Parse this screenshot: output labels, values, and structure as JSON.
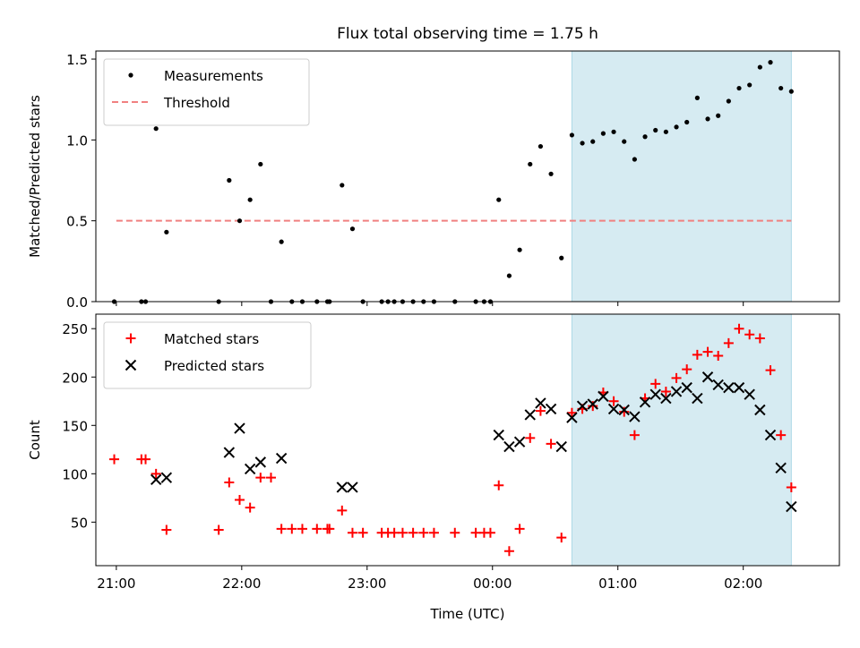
{
  "title": "Flux total observing time = 1.75 h",
  "chart_data": [
    {
      "type": "scatter",
      "panel": "top",
      "ylabel": "Matched/Predicted stars",
      "xlabel": "",
      "ylim": [
        0,
        1.55
      ],
      "yticks": [
        0.0,
        0.5,
        1.0,
        1.5
      ],
      "yticklabels": [
        "0.0",
        "0.5",
        "1.0",
        "1.5"
      ],
      "shaded_span": [
        "00:38",
        "02:23"
      ],
      "legend": {
        "placement": "top-left",
        "entries": [
          "Measurements",
          "Threshold"
        ]
      },
      "threshold": {
        "name": "Threshold",
        "y": 0.5,
        "x_range": [
          "21:00",
          "02:23"
        ],
        "color": "#f08080",
        "style": "dashed"
      },
      "series": [
        {
          "name": "Measurements",
          "color": "#000000",
          "marker": "dot",
          "points": [
            [
              "20:59",
              0.0
            ],
            [
              "21:12",
              0.0
            ],
            [
              "21:14",
              0.0
            ],
            [
              "21:19",
              1.07
            ],
            [
              "21:24",
              0.43
            ],
            [
              "21:49",
              0.0
            ],
            [
              "21:54",
              0.75
            ],
            [
              "21:59",
              0.5
            ],
            [
              "22:04",
              0.63
            ],
            [
              "22:09",
              0.85
            ],
            [
              "22:14",
              0.0
            ],
            [
              "22:19",
              0.37
            ],
            [
              "22:24",
              0.0
            ],
            [
              "22:29",
              0.0
            ],
            [
              "22:36",
              0.0
            ],
            [
              "22:41",
              0.0
            ],
            [
              "22:42",
              0.0
            ],
            [
              "22:48",
              0.72
            ],
            [
              "22:53",
              0.45
            ],
            [
              "22:58",
              0.0
            ],
            [
              "23:07",
              0.0
            ],
            [
              "23:10",
              0.0
            ],
            [
              "23:13",
              0.0
            ],
            [
              "23:17",
              0.0
            ],
            [
              "23:22",
              0.0
            ],
            [
              "23:27",
              0.0
            ],
            [
              "23:32",
              0.0
            ],
            [
              "23:42",
              0.0
            ],
            [
              "23:52",
              0.0
            ],
            [
              "23:56",
              0.0
            ],
            [
              "23:59",
              0.0
            ],
            [
              "00:03",
              0.63
            ],
            [
              "00:08",
              0.16
            ],
            [
              "00:13",
              0.32
            ],
            [
              "00:18",
              0.85
            ],
            [
              "00:23",
              0.96
            ],
            [
              "00:28",
              0.79
            ],
            [
              "00:33",
              0.27
            ],
            [
              "00:38",
              1.03
            ],
            [
              "00:43",
              0.98
            ],
            [
              "00:48",
              0.99
            ],
            [
              "00:53",
              1.04
            ],
            [
              "00:58",
              1.05
            ],
            [
              "01:03",
              0.99
            ],
            [
              "01:08",
              0.88
            ],
            [
              "01:13",
              1.02
            ],
            [
              "01:18",
              1.06
            ],
            [
              "01:23",
              1.05
            ],
            [
              "01:28",
              1.08
            ],
            [
              "01:33",
              1.11
            ],
            [
              "01:38",
              1.26
            ],
            [
              "01:43",
              1.13
            ],
            [
              "01:48",
              1.15
            ],
            [
              "01:53",
              1.24
            ],
            [
              "01:58",
              1.32
            ],
            [
              "02:03",
              1.34
            ],
            [
              "02:08",
              1.45
            ],
            [
              "02:13",
              1.48
            ],
            [
              "02:18",
              1.32
            ],
            [
              "02:23",
              1.3
            ]
          ]
        }
      ]
    },
    {
      "type": "scatter",
      "panel": "bottom",
      "ylabel": "Count",
      "xlabel": "Time (UTC)",
      "ylim": [
        5,
        265
      ],
      "yticks": [
        50,
        100,
        150,
        200,
        250
      ],
      "yticklabels": [
        "50",
        "100",
        "150",
        "200",
        "250"
      ],
      "xticks": [
        "21:00",
        "22:00",
        "23:00",
        "00:00",
        "01:00",
        "02:00"
      ],
      "shaded_span": [
        "00:38",
        "02:23"
      ],
      "legend": {
        "placement": "top-left",
        "entries": [
          "Matched stars",
          "Predicted stars"
        ]
      },
      "series": [
        {
          "name": "Matched stars",
          "color": "#ff0000",
          "marker": "plus",
          "points": [
            [
              "20:59",
              115
            ],
            [
              "21:12",
              115
            ],
            [
              "21:14",
              115
            ],
            [
              "21:19",
              100
            ],
            [
              "21:24",
              42
            ],
            [
              "21:49",
              42
            ],
            [
              "21:54",
              91
            ],
            [
              "21:59",
              73
            ],
            [
              "22:04",
              65
            ],
            [
              "22:09",
              96
            ],
            [
              "22:14",
              96
            ],
            [
              "22:19",
              43
            ],
            [
              "22:24",
              43
            ],
            [
              "22:29",
              43
            ],
            [
              "22:36",
              43
            ],
            [
              "22:41",
              43
            ],
            [
              "22:42",
              43
            ],
            [
              "22:48",
              62
            ],
            [
              "22:53",
              39
            ],
            [
              "22:58",
              39
            ],
            [
              "23:07",
              39
            ],
            [
              "23:10",
              39
            ],
            [
              "23:13",
              39
            ],
            [
              "23:17",
              39
            ],
            [
              "23:22",
              39
            ],
            [
              "23:27",
              39
            ],
            [
              "23:32",
              39
            ],
            [
              "23:42",
              39
            ],
            [
              "23:52",
              39
            ],
            [
              "23:56",
              39
            ],
            [
              "23:59",
              39
            ],
            [
              "00:03",
              88
            ],
            [
              "00:08",
              20
            ],
            [
              "00:13",
              43
            ],
            [
              "00:18",
              137
            ],
            [
              "00:23",
              165
            ],
            [
              "00:28",
              131
            ],
            [
              "00:33",
              34
            ],
            [
              "00:38",
              163
            ],
            [
              "00:43",
              167
            ],
            [
              "00:48",
              170
            ],
            [
              "00:53",
              184
            ],
            [
              "00:58",
              175
            ],
            [
              "01:03",
              164
            ],
            [
              "01:08",
              140
            ],
            [
              "01:13",
              178
            ],
            [
              "01:18",
              193
            ],
            [
              "01:23",
              185
            ],
            [
              "01:28",
              199
            ],
            [
              "01:33",
              208
            ],
            [
              "01:38",
              223
            ],
            [
              "01:43",
              226
            ],
            [
              "01:48",
              222
            ],
            [
              "01:53",
              235
            ],
            [
              "01:58",
              250
            ],
            [
              "02:03",
              244
            ],
            [
              "02:08",
              240
            ],
            [
              "02:13",
              207
            ],
            [
              "02:18",
              140
            ],
            [
              "02:23",
              86
            ]
          ]
        },
        {
          "name": "Predicted stars",
          "color": "#000000",
          "marker": "x",
          "points": [
            [
              "21:19",
              94
            ],
            [
              "21:24",
              96
            ],
            [
              "21:54",
              122
            ],
            [
              "21:59",
              147
            ],
            [
              "22:04",
              105
            ],
            [
              "22:09",
              112
            ],
            [
              "22:19",
              116
            ],
            [
              "22:48",
              86
            ],
            [
              "22:53",
              86
            ],
            [
              "00:03",
              140
            ],
            [
              "00:08",
              128
            ],
            [
              "00:13",
              133
            ],
            [
              "00:18",
              161
            ],
            [
              "00:23",
              173
            ],
            [
              "00:28",
              167
            ],
            [
              "00:33",
              128
            ],
            [
              "00:38",
              158
            ],
            [
              "00:43",
              170
            ],
            [
              "00:48",
              172
            ],
            [
              "00:53",
              180
            ],
            [
              "00:58",
              167
            ],
            [
              "01:03",
              166
            ],
            [
              "01:08",
              159
            ],
            [
              "01:13",
              174
            ],
            [
              "01:18",
              182
            ],
            [
              "01:23",
              178
            ],
            [
              "01:28",
              185
            ],
            [
              "01:33",
              189
            ],
            [
              "01:38",
              178
            ],
            [
              "01:43",
              200
            ],
            [
              "01:48",
              192
            ],
            [
              "01:53",
              189
            ],
            [
              "01:58",
              189
            ],
            [
              "02:03",
              182
            ],
            [
              "02:08",
              166
            ],
            [
              "02:13",
              140
            ],
            [
              "02:18",
              106
            ],
            [
              "02:23",
              66
            ]
          ]
        }
      ]
    }
  ]
}
